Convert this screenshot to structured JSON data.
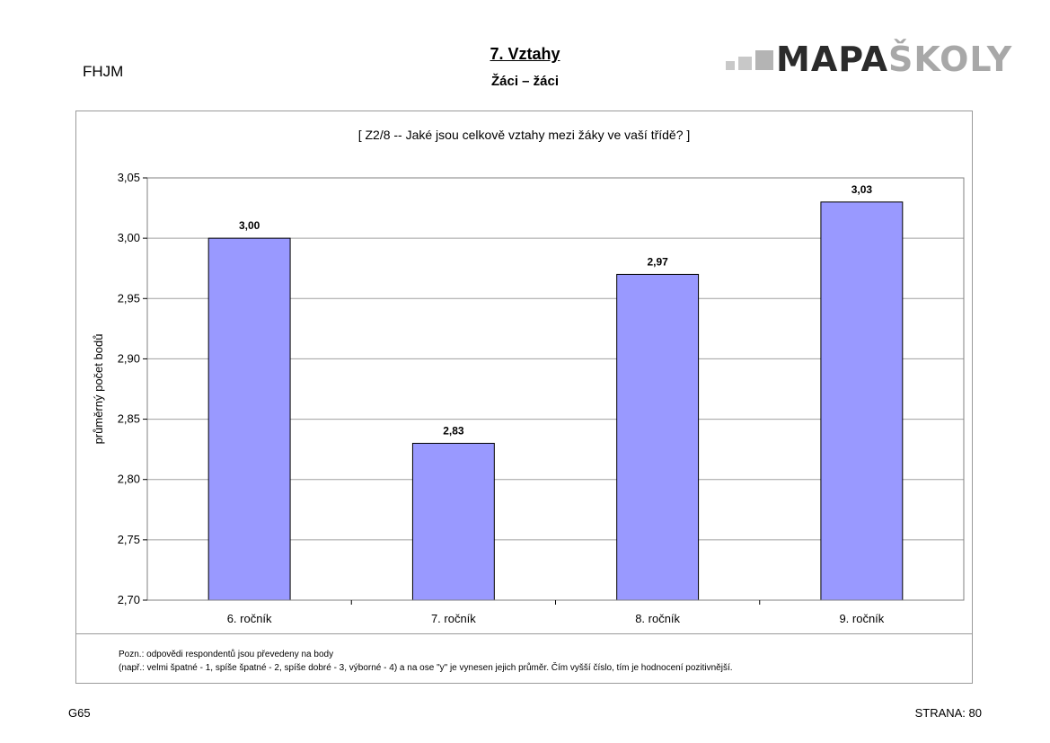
{
  "header": {
    "school_code": "FHJM",
    "section_title": "7. Vztahy",
    "section_subtitle": "Žáci – žáci",
    "logo": {
      "part1": "MAPA",
      "part2": "ŠKOLY"
    }
  },
  "question": "[ Z2/8 --  Jaké jsou celkově vztahy mezi žáky ve vaší třídě? ]",
  "note": {
    "line1": "Pozn.: odpovědi respondentů jsou převedeny na body",
    "line2": "(např.: velmi špatné - 1, spíše špatné - 2, spíše dobré - 3, výborné - 4) a na ose \"y\" je vynesen jejich průměr. Čím vyšší číslo, tím je hodnocení pozitivnější."
  },
  "footer": {
    "left": "G65",
    "right": "STRANA: 80"
  },
  "chart_data": {
    "type": "bar",
    "categories": [
      "6. ročník",
      "7. ročník",
      "8. ročník",
      "9. ročník"
    ],
    "values": [
      3.0,
      2.83,
      2.97,
      3.03
    ],
    "data_labels": [
      "3,00",
      "2,83",
      "2,97",
      "3,03"
    ],
    "ylabel": "průměrný počet bodů",
    "ylim": [
      2.7,
      3.05
    ],
    "yticks": [
      "2,70",
      "2,75",
      "2,80",
      "2,85",
      "2,90",
      "2,95",
      "3,00",
      "3,05"
    ],
    "grid": true,
    "legend": "none",
    "bar_color": "#9999ff",
    "bar_stroke": "#000000",
    "grid_color": "#a0a0a0"
  }
}
